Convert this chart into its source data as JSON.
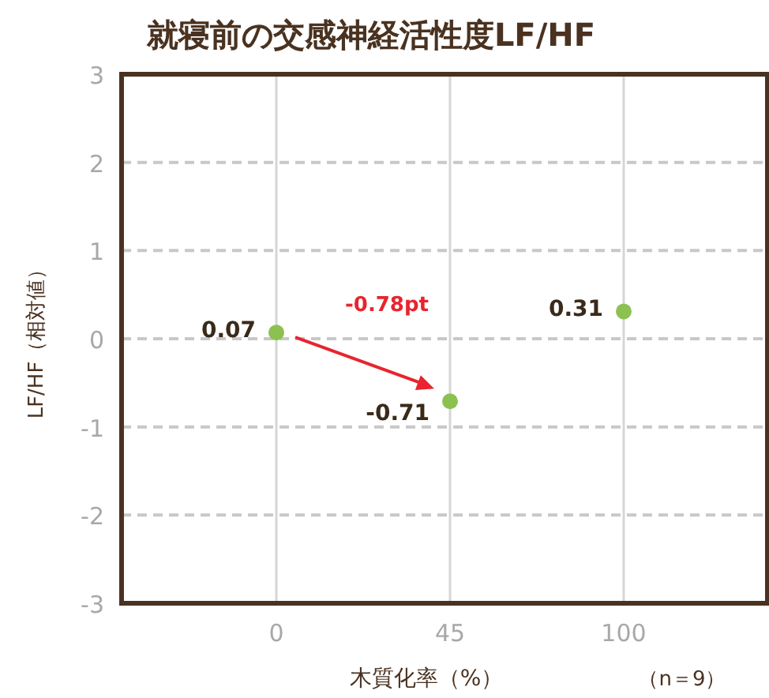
{
  "chart_data": {
    "type": "scatter",
    "title": "就寝前の交感神経活性度LF/HF",
    "xlabel": "木質化率（%）",
    "ylabel": "LF/HF（相対値）",
    "categories": [
      "0",
      "45",
      "100"
    ],
    "series": [
      {
        "color": "#8cc152",
        "values": [
          0.07,
          -0.71,
          0.31
        ]
      }
    ],
    "ylim": [
      -3,
      3
    ],
    "yticks": [
      -3,
      -2,
      -1,
      0,
      1,
      2,
      3
    ],
    "grid": true,
    "marker": "circle",
    "data_labels": true,
    "annotations": [
      "-0.78pt",
      "（n＝9）"
    ]
  }
}
